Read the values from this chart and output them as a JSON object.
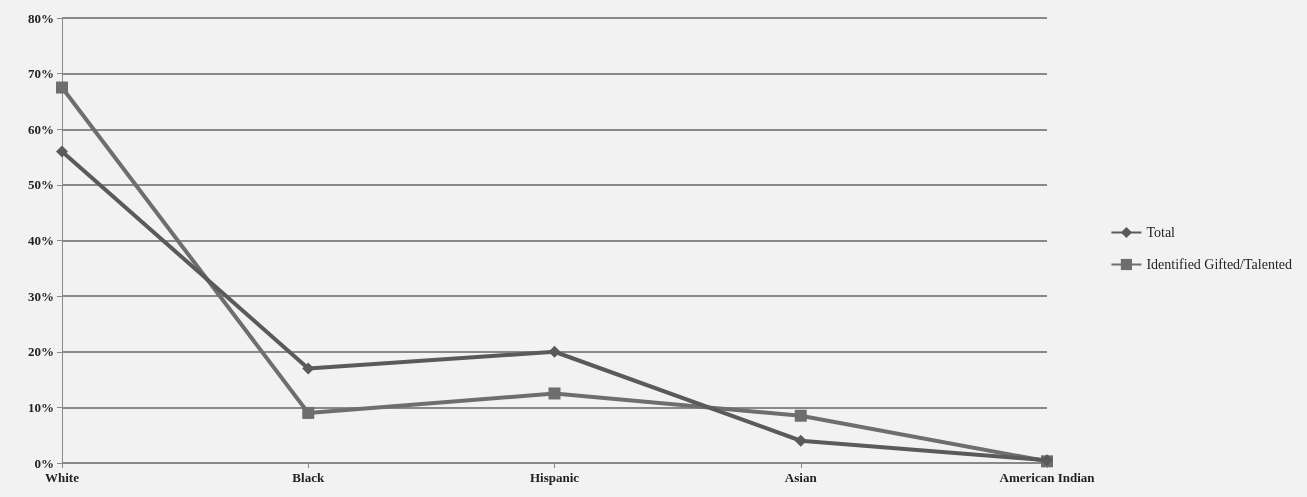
{
  "chart_data": {
    "type": "line",
    "categories": [
      "White",
      "Black",
      "Hispanic",
      "Asian",
      "American Indian"
    ],
    "series": [
      {
        "name": "Total",
        "color": "#5a5a5a",
        "marker": "diamond",
        "values": [
          56,
          17,
          20,
          4,
          0.5
        ]
      },
      {
        "name": "Identified Gifted/Talented",
        "color": "#6e6e6e",
        "marker": "square",
        "values": [
          67.5,
          9,
          12.5,
          8.5,
          0.3
        ]
      }
    ],
    "ylim": [
      0,
      80
    ],
    "yticks": [
      {
        "value": 0,
        "label": "0%"
      },
      {
        "value": 10,
        "label": "10%"
      },
      {
        "value": 20,
        "label": "20%"
      },
      {
        "value": 30,
        "label": "30%"
      },
      {
        "value": 40,
        "label": "40%"
      },
      {
        "value": 50,
        "label": "50%"
      },
      {
        "value": 60,
        "label": "60%"
      },
      {
        "value": 70,
        "label": "70%"
      },
      {
        "value": 80,
        "label": "80%"
      }
    ],
    "grid": "y",
    "legend": "right"
  }
}
